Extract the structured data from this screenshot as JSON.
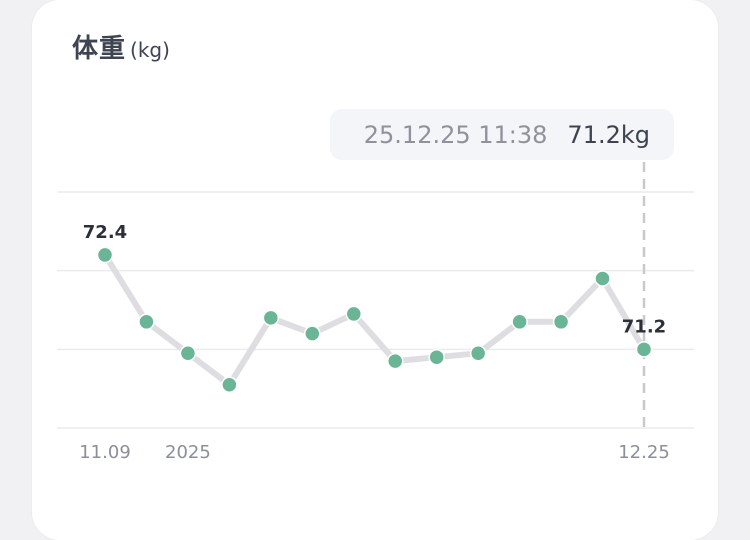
{
  "header": {
    "title": "体重",
    "unit": "(kg)"
  },
  "tooltip": {
    "date": "25.12.25 11:38",
    "value": "71.2kg"
  },
  "colors": {
    "point": "#69b596",
    "line": "#dedee2",
    "grid": "#ebebee",
    "cursor": "#c9c9cd",
    "label": "#2b2f38",
    "tick": "#8a8f99"
  },
  "chart_data": {
    "type": "line",
    "x_tick_labels": [
      "11.09",
      "2025",
      "12.25"
    ],
    "x_tick_index": [
      0,
      2,
      13
    ],
    "series": [
      {
        "values": [
          72.4,
          71.55,
          71.15,
          70.75,
          71.6,
          71.4,
          71.65,
          71.05,
          71.1,
          71.15,
          71.55,
          71.55,
          72.1,
          71.2
        ]
      }
    ],
    "point_labels": [
      {
        "index": 0,
        "text": "72.4"
      },
      {
        "index": 13,
        "text": "71.2"
      }
    ],
    "selected_index": 13,
    "ylim": [
      70.2,
      73.2
    ],
    "grid": true,
    "gridlines": [
      73.2,
      72.2,
      71.2,
      70.2
    ]
  }
}
